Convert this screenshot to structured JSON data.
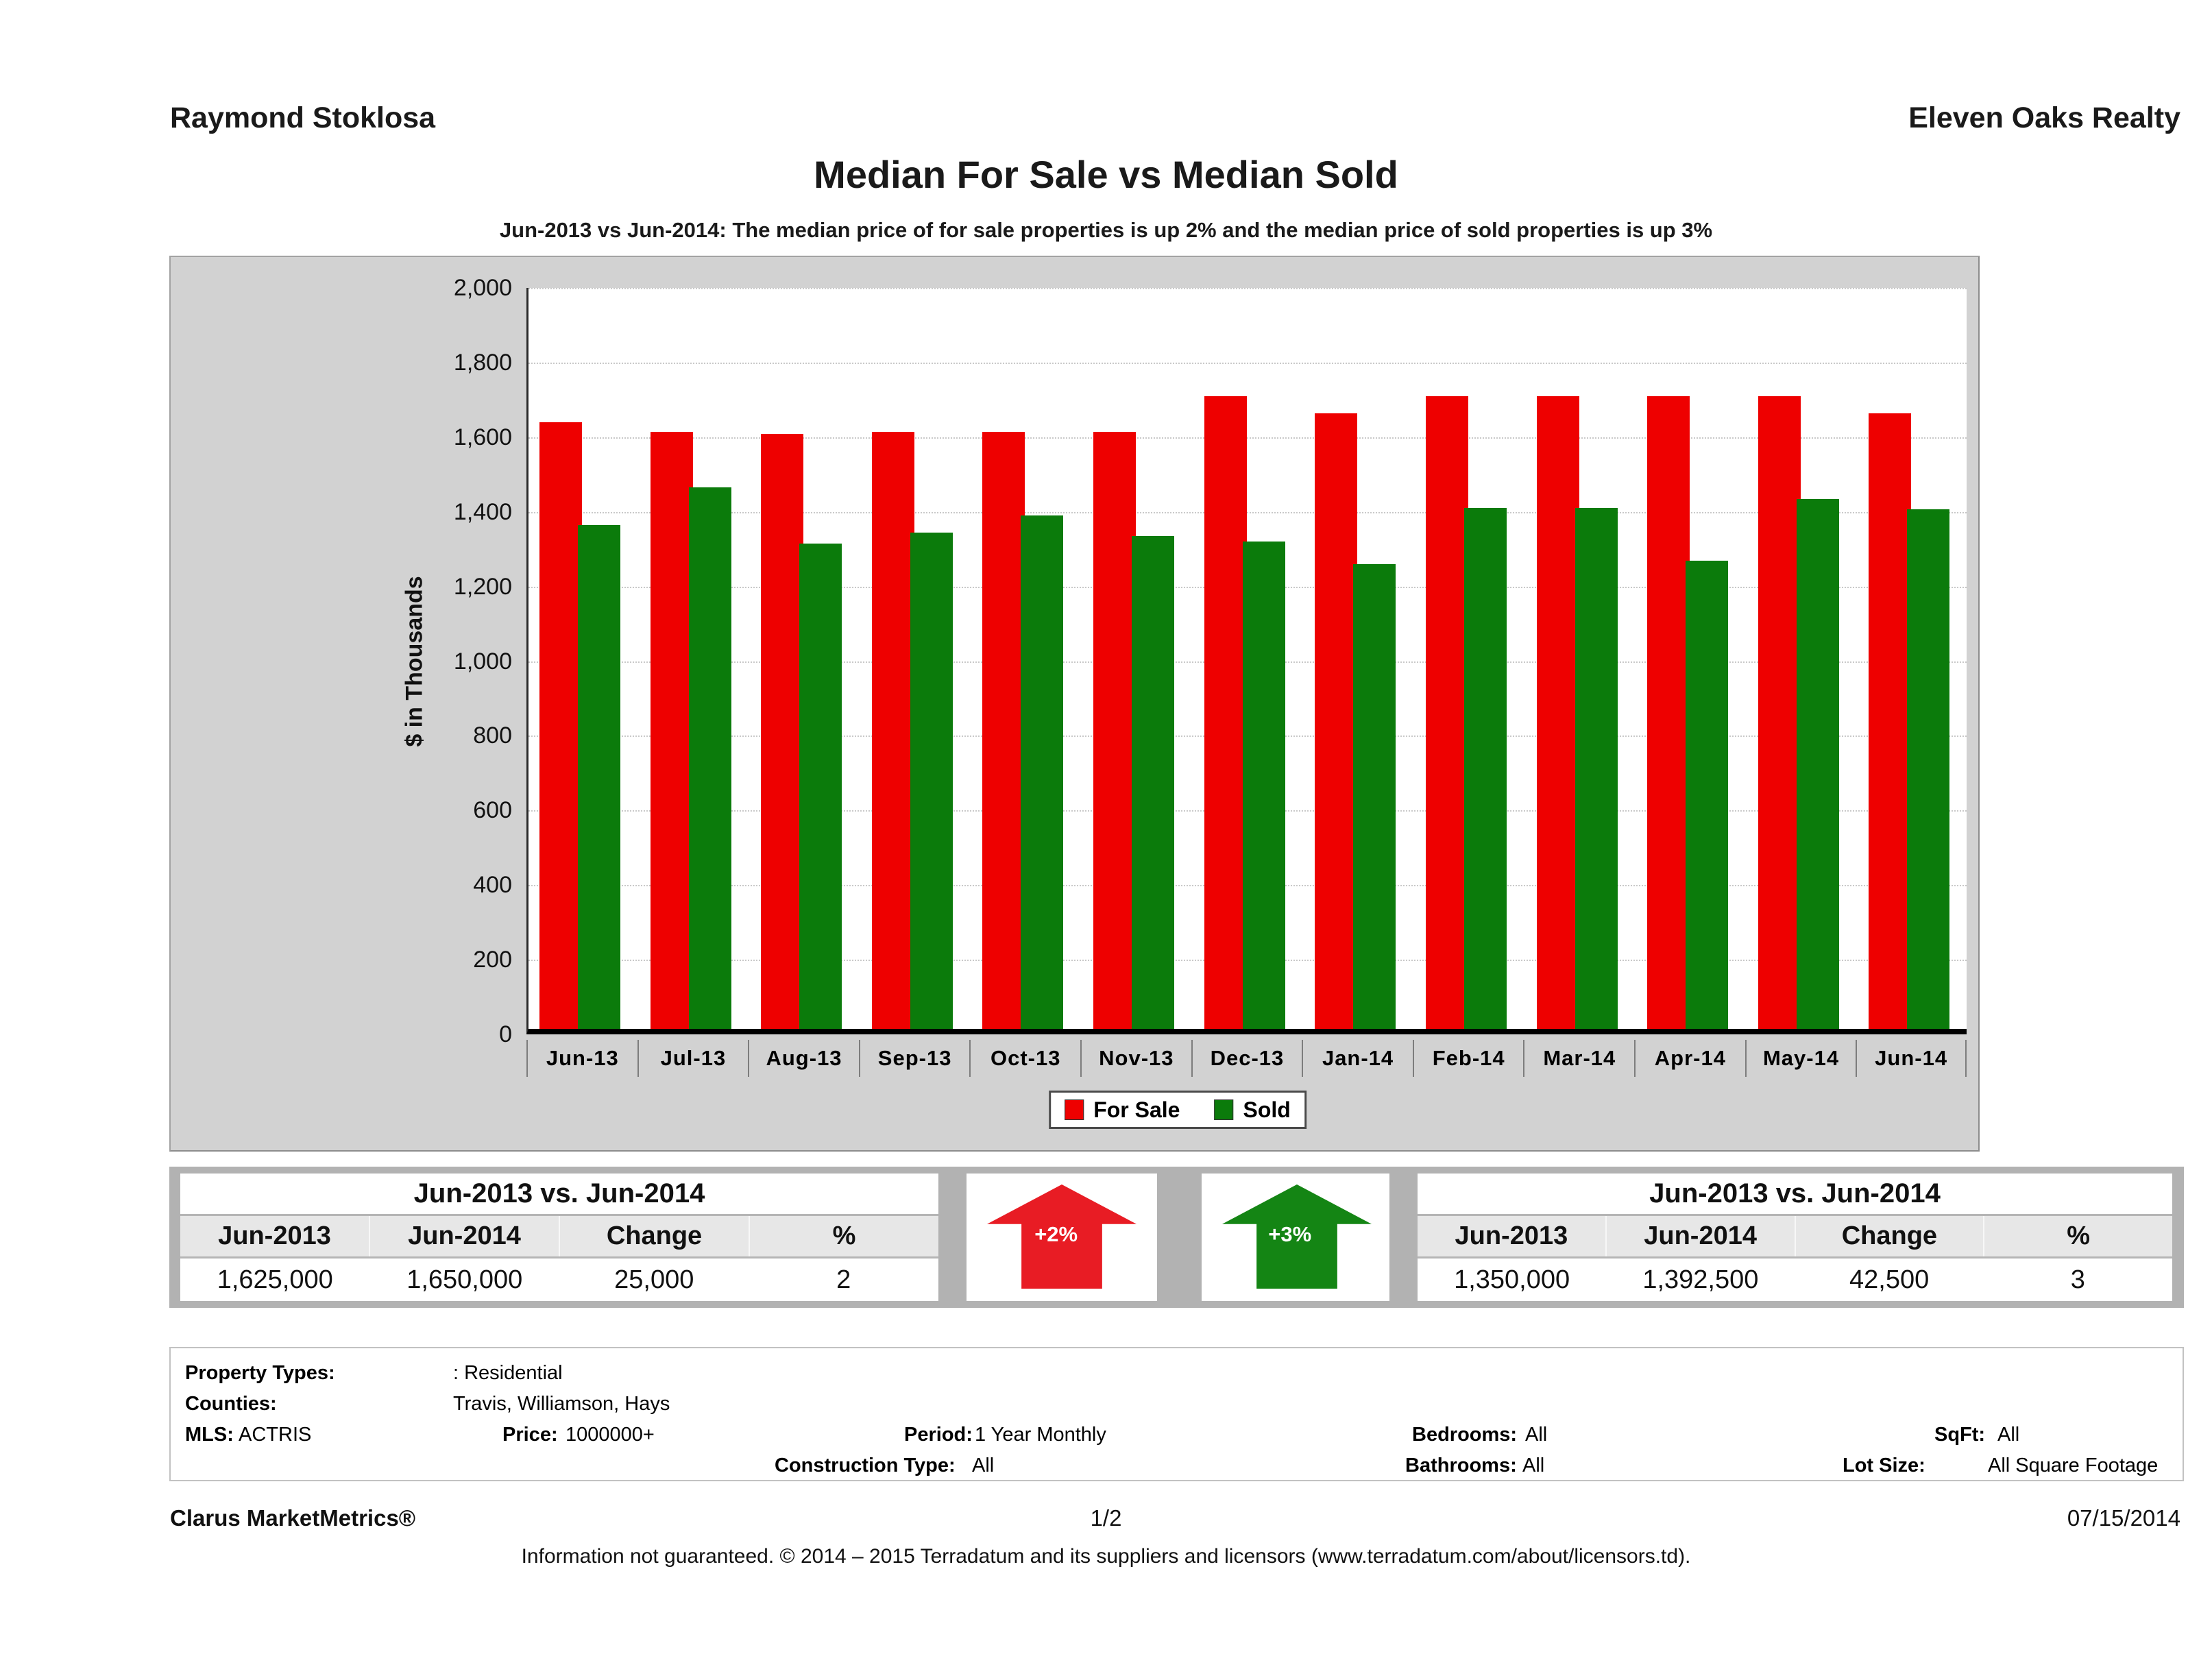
{
  "header": {
    "agent_name": "Raymond Stoklosa",
    "company_name": "Eleven Oaks Realty",
    "title": "Median For Sale vs Median Sold",
    "subtitle": "Jun-2013 vs Jun-2014: The median price of for sale properties is up 2% and the median price of sold properties is up 3%"
  },
  "chart_data": {
    "type": "bar",
    "title": "Median For Sale vs Median Sold",
    "ylabel": "$ in Thousands",
    "ylim": [
      0,
      2000
    ],
    "ytick_step": 200,
    "grid": true,
    "legend_position": "bottom",
    "units": "thousands of dollars",
    "categories": [
      "Jun-13",
      "Jul-13",
      "Aug-13",
      "Sep-13",
      "Oct-13",
      "Nov-13",
      "Dec-13",
      "Jan-14",
      "Feb-14",
      "Mar-14",
      "Apr-14",
      "May-14",
      "Jun-14"
    ],
    "series": [
      {
        "name": "For Sale",
        "color": "#ee0000",
        "values": [
          1625,
          1600,
          1595,
          1600,
          1600,
          1600,
          1695,
          1650,
          1695,
          1695,
          1695,
          1695,
          1650
        ]
      },
      {
        "name": "Sold",
        "color": "#0b7b0b",
        "values": [
          1350,
          1450,
          1300,
          1330,
          1375,
          1320,
          1305,
          1245,
          1395,
          1395,
          1255,
          1420,
          1392.5
        ]
      }
    ]
  },
  "summary_left": {
    "title": "Jun-2013 vs. Jun-2014",
    "columns": [
      "Jun-2013",
      "Jun-2014",
      "Change",
      "%"
    ],
    "values": [
      "1,625,000",
      "1,650,000",
      "25,000",
      "2"
    ]
  },
  "summary_right": {
    "title": "Jun-2013 vs. Jun-2014",
    "columns": [
      "Jun-2013",
      "Jun-2014",
      "Change",
      "%"
    ],
    "values": [
      "1,350,000",
      "1,392,500",
      "42,500",
      "3"
    ]
  },
  "arrows": {
    "for_sale": {
      "label": "+2%",
      "color": "#e81c24",
      "direction": "up"
    },
    "sold": {
      "label": "+3%",
      "color": "#148514",
      "direction": "up"
    }
  },
  "criteria": {
    "property_types_label": "Property Types:",
    "property_types": ": Residential",
    "counties_label": "Counties:",
    "counties": "Travis, Williamson, Hays",
    "mls_label": "MLS:",
    "mls": "ACTRIS",
    "price_label": "Price:",
    "price": "1000000+",
    "period_label": "Period:",
    "period": "1 Year Monthly",
    "construction_label": "Construction Type:",
    "construction": "All",
    "bedrooms_label": "Bedrooms:",
    "bedrooms": "All",
    "bathrooms_label": "Bathrooms:",
    "bathrooms": "All",
    "sqft_label": "SqFt:",
    "sqft": "All",
    "lot_label": "Lot Size:",
    "lot": "All Square Footage"
  },
  "footer": {
    "product": "Clarus MarketMetrics®",
    "page": "1/2",
    "date": "07/15/2014",
    "disclaimer": "Information not guaranteed. © 2014 – 2015 Terradatum and its suppliers and licensors (www.terradatum.com/about/licensors.td)."
  }
}
